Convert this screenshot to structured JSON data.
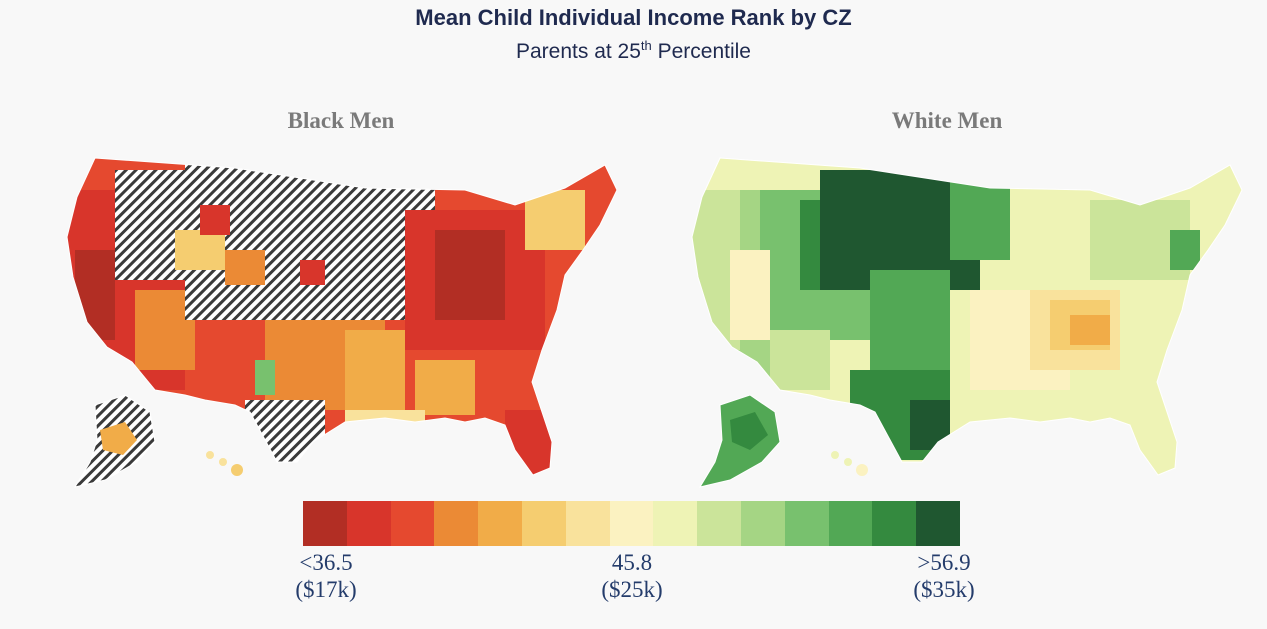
{
  "header": {
    "title": "Mean Child Individual Income Rank by CZ",
    "subtitle_main": "Parents at 25",
    "subtitle_sup": "th",
    "subtitle_rest": " Percentile"
  },
  "panels": [
    {
      "title": "Black Men",
      "palette": "red-dominant",
      "missing_pattern": "diagonal-hatch"
    },
    {
      "title": "White Men",
      "palette": "green-dominant"
    }
  ],
  "legend": {
    "colors": [
      "#b22e24",
      "#d8352b",
      "#e5492f",
      "#eb8a35",
      "#f1ac48",
      "#f5cd70",
      "#f9e29c",
      "#fbf2c1",
      "#eef3b5",
      "#cbe49a",
      "#a5d584",
      "#78c16e",
      "#52a855",
      "#348a3f",
      "#1f5730"
    ],
    "low": {
      "value": "<36.5",
      "dollars": "($17k)"
    },
    "mid": {
      "value": "45.8",
      "dollars": "($25k)"
    },
    "high": {
      "value": ">56.9",
      "dollars": "($35k)"
    }
  }
}
